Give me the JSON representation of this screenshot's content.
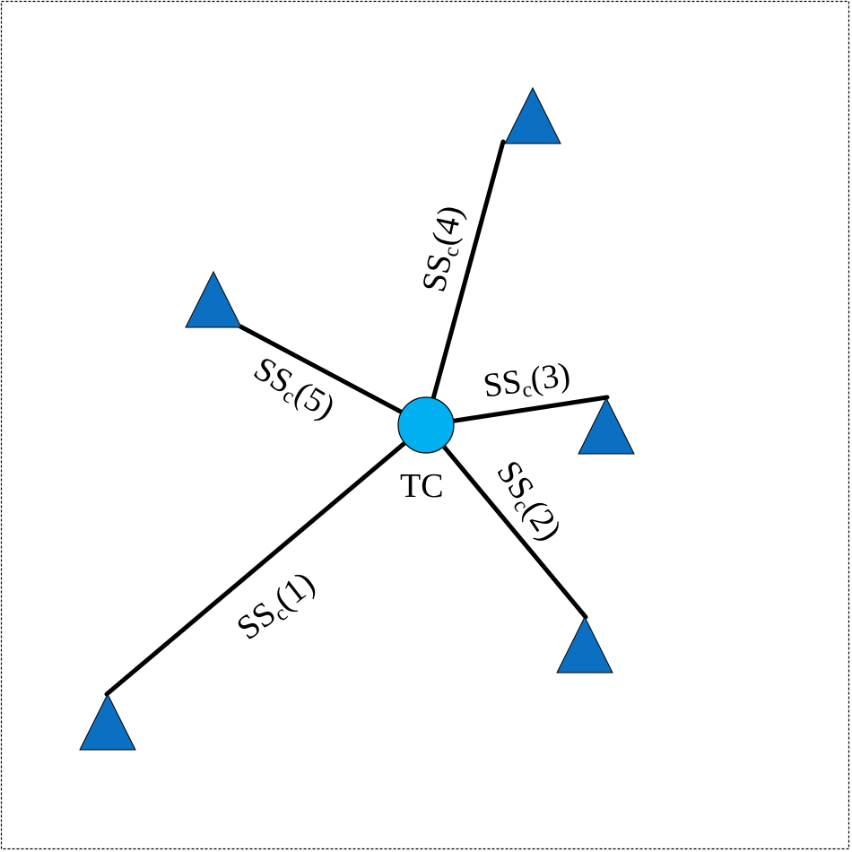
{
  "colors": {
    "station_fill": "#0b6fc2",
    "hub_fill": "#00b0f0",
    "link": "#000000",
    "frame": "#000000"
  },
  "hub": {
    "label": "TC"
  },
  "links": [
    {
      "id": 1,
      "prefix": "SS",
      "sub": "c",
      "suffix": "(1)"
    },
    {
      "id": 2,
      "prefix": "SS",
      "sub": "c",
      "suffix": "(2)"
    },
    {
      "id": 3,
      "prefix": "SS",
      "sub": "c",
      "suffix": "(3)"
    },
    {
      "id": 4,
      "prefix": "SS",
      "sub": "c",
      "suffix": "(4)"
    },
    {
      "id": 5,
      "prefix": "SS",
      "sub": "c",
      "suffix": "(5)"
    }
  ]
}
